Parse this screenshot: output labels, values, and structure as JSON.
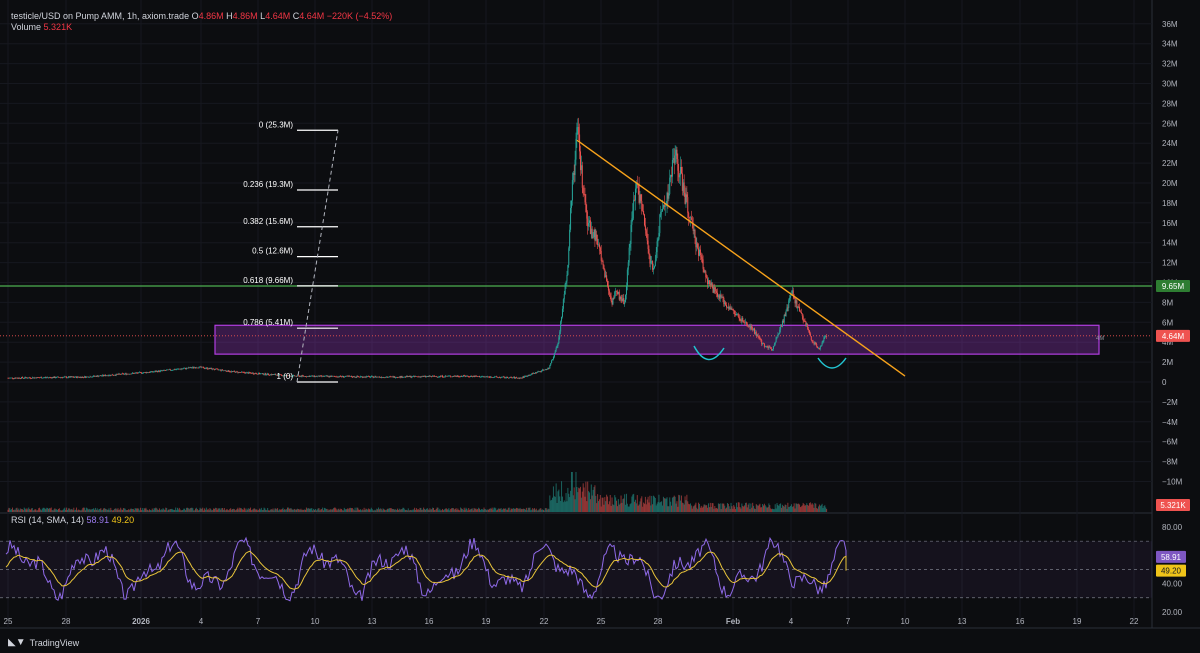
{
  "header": {
    "symbol": "testicle/USD on Pump AMM, 1h, axiom.trade",
    "o_label": "O",
    "o_value": "4.86M",
    "h_label": "H",
    "h_value": "4.86M",
    "l_label": "L",
    "l_value": "4.64M",
    "c_label": "C",
    "c_value": "4.64M",
    "change": "−220K (−4.52%)",
    "volume_label": "Volume",
    "volume_value": "5.321K"
  },
  "rsi_header": {
    "label": "RSI (14, SMA, 14)",
    "rsi_value": "58.91",
    "sma_value": "49.20"
  },
  "branding": {
    "text": "TradingView"
  },
  "colors": {
    "up": "#26a69a",
    "down": "#ef5350",
    "fib": "#ffffff",
    "trend": "#f7a21b",
    "support": "#4caf50",
    "zone": "#b13ee0",
    "arc": "#22c3d0",
    "rsi": "#8f6ae8",
    "rsi_sma": "#e8c43a"
  },
  "chart_data": [
    {
      "type": "candlestick",
      "price_axis": {
        "min": -12,
        "max": 37,
        "ticks": [
          "36M",
          "34M",
          "32M",
          "30M",
          "28M",
          "26M",
          "24M",
          "22M",
          "20M",
          "18M",
          "16M",
          "14M",
          "12M",
          "10M",
          "8M",
          "6M",
          "4M",
          "2M",
          "0",
          "−2M",
          "−4M",
          "−6M",
          "−8M",
          "−10M"
        ],
        "tick_values": [
          36,
          34,
          32,
          30,
          28,
          26,
          24,
          22,
          20,
          18,
          16,
          14,
          12,
          10,
          8,
          6,
          4,
          2,
          0,
          -2,
          -4,
          -6,
          -8,
          -10
        ]
      },
      "time_axis": {
        "labels": [
          "25",
          "28",
          "2026",
          "4",
          "7",
          "10",
          "13",
          "16",
          "19",
          "22",
          "25",
          "28",
          "Feb",
          "4",
          "7",
          "10",
          "13",
          "16",
          "19",
          "22"
        ]
      },
      "price_path_millions": [
        [
          0,
          0.4
        ],
        [
          8,
          0.5
        ],
        [
          15,
          1.0
        ],
        [
          20,
          1.5
        ],
        [
          24,
          1.0
        ],
        [
          30,
          0.6
        ],
        [
          40,
          0.5
        ],
        [
          48,
          0.6
        ],
        [
          54,
          0.4
        ],
        [
          57,
          1.4
        ],
        [
          58,
          4.0
        ],
        [
          58.5,
          8.0
        ],
        [
          59,
          12.0
        ],
        [
          59.3,
          18.0
        ],
        [
          59.7,
          22.0
        ],
        [
          60,
          25.3
        ],
        [
          60.6,
          19.0
        ],
        [
          61,
          16.0
        ],
        [
          62,
          14.5
        ],
        [
          63,
          10.5
        ],
        [
          63.6,
          8.0
        ],
        [
          64,
          9.0
        ],
        [
          65,
          8.0
        ],
        [
          65.6,
          15.0
        ],
        [
          66.2,
          20.0
        ],
        [
          66.7,
          18.0
        ],
        [
          67.5,
          13.0
        ],
        [
          68,
          11.0
        ],
        [
          68.8,
          17.0
        ],
        [
          69.6,
          19.0
        ],
        [
          70.2,
          23.0
        ],
        [
          70.8,
          21.0
        ],
        [
          71.5,
          18.0
        ],
        [
          72.2,
          15.0
        ],
        [
          73,
          12.5
        ],
        [
          73.8,
          10.0
        ],
        [
          74.5,
          9.0
        ],
        [
          75.5,
          8.0
        ],
        [
          76.5,
          7.0
        ],
        [
          77.5,
          6.0
        ],
        [
          78.5,
          5.3
        ],
        [
          79.5,
          3.8
        ],
        [
          80.5,
          3.3
        ],
        [
          81.2,
          5.0
        ],
        [
          82,
          7.0
        ],
        [
          82.6,
          9.1
        ],
        [
          83.2,
          7.5
        ],
        [
          84,
          6.0
        ],
        [
          84.8,
          4.0
        ],
        [
          85.5,
          3.4
        ],
        [
          86,
          4.5
        ],
        [
          86.3,
          4.64
        ]
      ],
      "volume_path": "spike near Jan 10 then declining",
      "fibonacci": [
        {
          "label": "0 (25.3M)",
          "value": 25.3
        },
        {
          "label": "0.236 (19.3M)",
          "value": 19.3
        },
        {
          "label": "0.382 (15.6M)",
          "value": 15.6
        },
        {
          "label": "0.5 (12.6M)",
          "value": 12.6
        },
        {
          "label": "0.618 (9.66M)",
          "value": 9.66
        },
        {
          "label": "0.786 (5.41M)",
          "value": 5.41
        },
        {
          "label": "1 (0)",
          "value": 0
        }
      ],
      "support_line": {
        "value": 9.65,
        "label": "9.65M"
      },
      "demand_zone": {
        "low": 2.8,
        "high": 5.7
      },
      "trendline": {
        "from": [
          62,
          24.3
        ],
        "to": [
          93,
          0.6
        ]
      },
      "last_price": {
        "value": 4.64,
        "label": "4.64M"
      },
      "volume_tag": "5.321K",
      "extra_axis_label": "4M"
    },
    {
      "type": "line",
      "name": "RSI",
      "rsi_axis": {
        "ticks": [
          "80.00",
          "60.00",
          "40.00",
          "20.00"
        ],
        "tick_values": [
          80,
          60,
          40,
          20
        ],
        "band": [
          70,
          30
        ]
      },
      "rsi_last": "58.91",
      "sma_last": "49.20"
    }
  ]
}
